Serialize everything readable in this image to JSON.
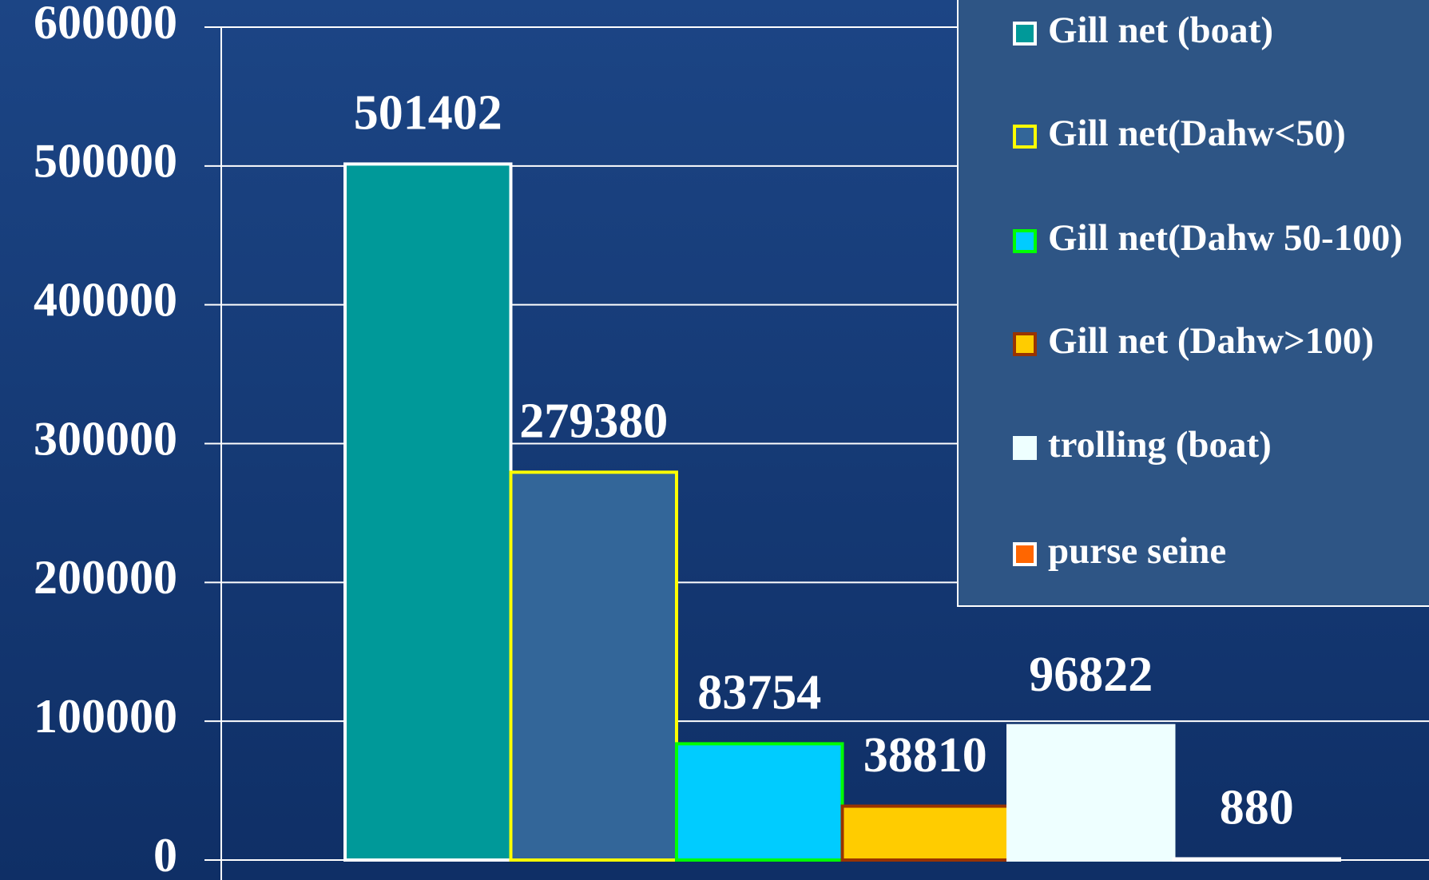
{
  "chart_data": {
    "type": "bar",
    "series": [
      {
        "name": "Gill net (boat)",
        "color": "#009999",
        "edgecolor": "#ffffff",
        "values": [
          501402
        ]
      },
      {
        "name": "Gill net(Dahw<50)",
        "color": "#336699",
        "edgecolor": "#ffff00",
        "values": [
          279380
        ]
      },
      {
        "name": "Gill net(Dahw 50-100)",
        "color": "#00ccff",
        "edgecolor": "#00ff00",
        "values": [
          83754
        ]
      },
      {
        "name": "Gill net (Dahw>100)",
        "color": "#ffcc00",
        "edgecolor": "#993300",
        "values": [
          38810
        ]
      },
      {
        "name": "trolling (boat)",
        "color": "#eeffff",
        "edgecolor": "#eeffff",
        "values": [
          96822
        ]
      },
      {
        "name": "purse seine",
        "color": "#ff6600",
        "edgecolor": "#ffffff",
        "values": [
          880
        ]
      }
    ],
    "ylim": [
      0,
      600000
    ],
    "yticks": [
      0,
      100000,
      200000,
      300000,
      400000,
      500000,
      600000
    ],
    "grid": true,
    "legend": "upper right"
  }
}
